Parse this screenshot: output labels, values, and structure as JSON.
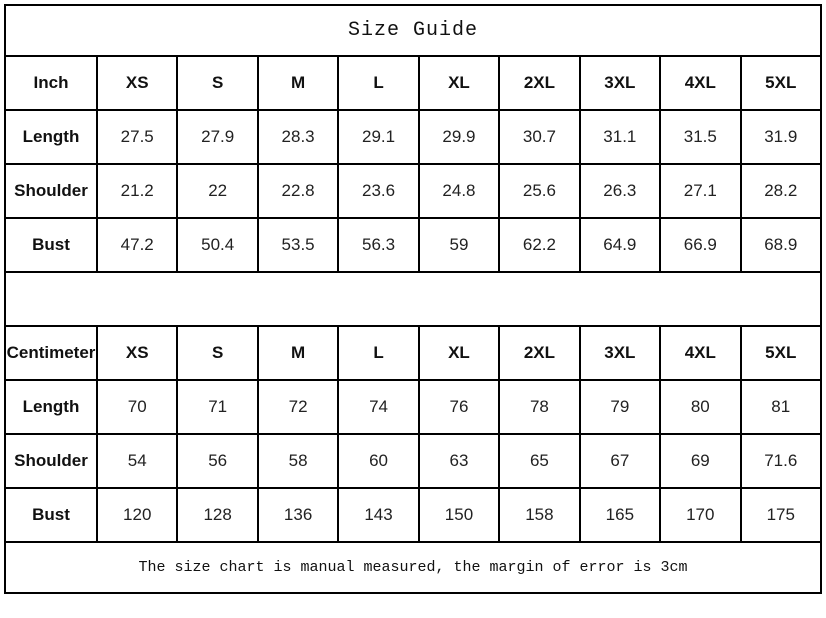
{
  "title": "Size Guide",
  "footer_note": "The size chart is manual measured, the margin of error is 3cm",
  "colors": {
    "border": "#000000",
    "background": "#ffffff",
    "text": "#1c1c1c"
  },
  "chart_data": [
    {
      "type": "table",
      "title": "Size Guide",
      "unit_label": "Inch",
      "columns": [
        "XS",
        "S",
        "M",
        "L",
        "XL",
        "2XL",
        "3XL",
        "4XL",
        "5XL"
      ],
      "rows": [
        {
          "label": "Length",
          "values": [
            27.5,
            27.9,
            28.3,
            29.1,
            29.9,
            30.7,
            31.1,
            31.5,
            31.9
          ]
        },
        {
          "label": "Shoulder",
          "values": [
            21.2,
            22,
            22.8,
            23.6,
            24.8,
            25.6,
            26.3,
            27.1,
            28.2
          ]
        },
        {
          "label": "Bust",
          "values": [
            47.2,
            50.4,
            53.5,
            56.3,
            59,
            62.2,
            64.9,
            66.9,
            68.9
          ]
        }
      ]
    },
    {
      "type": "table",
      "title": "Size Guide",
      "unit_label": "Centimeter",
      "columns": [
        "XS",
        "S",
        "M",
        "L",
        "XL",
        "2XL",
        "3XL",
        "4XL",
        "5XL"
      ],
      "rows": [
        {
          "label": "Length",
          "values": [
            70,
            71,
            72,
            74,
            76,
            78,
            79,
            80,
            81
          ]
        },
        {
          "label": "Shoulder",
          "values": [
            54,
            56,
            58,
            60,
            63,
            65,
            67,
            69,
            71.6
          ]
        },
        {
          "label": "Bust",
          "values": [
            120,
            128,
            136,
            143,
            150,
            158,
            165,
            170,
            175
          ]
        }
      ]
    }
  ]
}
